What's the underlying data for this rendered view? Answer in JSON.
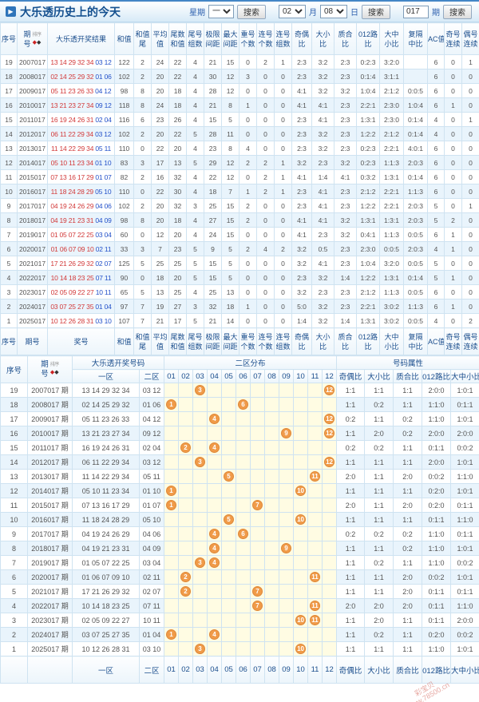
{
  "header": {
    "title": "大乐透历史上的今天",
    "week_label": "星期",
    "week_value": "一",
    "search_label": "搜索",
    "month_value": "02",
    "month_label": "月",
    "day_value": "08",
    "day_label": "日",
    "period_value": "017",
    "period_label": "期"
  },
  "sort_label": "排序",
  "table1": {
    "headers": [
      {
        "key": "seq",
        "l1": "序号",
        "l2": ""
      },
      {
        "key": "period",
        "l1": "期",
        "l2": "号",
        "sort": true
      },
      {
        "key": "result",
        "l1": "大乐透开奖结果",
        "l2": ""
      },
      {
        "key": "sum",
        "l1": "和值",
        "l2": ""
      },
      {
        "key": "sum-tail",
        "l1": "和值",
        "l2": "尾"
      },
      {
        "key": "average",
        "l1": "平均",
        "l2": "值"
      },
      {
        "key": "tail-sum",
        "l1": "尾数",
        "l2": "和值"
      },
      {
        "key": "tail-groups",
        "l1": "尾号",
        "l2": "组数"
      },
      {
        "key": "limit-span",
        "l1": "极限",
        "l2": "间距"
      },
      {
        "key": "max-gap",
        "l1": "最大",
        "l2": "间距"
      },
      {
        "key": "repeat-count",
        "l1": "重号",
        "l2": "个数"
      },
      {
        "key": "consec-count",
        "l1": "连号",
        "l2": "个数"
      },
      {
        "key": "consec-groups",
        "l1": "连号",
        "l2": "组数"
      },
      {
        "key": "odd-even-ratio",
        "l1": "奇偶",
        "l2": "比"
      },
      {
        "key": "big-small-ratio",
        "l1": "大小",
        "l2": "比"
      },
      {
        "key": "prime-composite-ratio",
        "l1": "质合",
        "l2": "比"
      },
      {
        "key": "road012-ratio",
        "l1": "012路",
        "l2": "比"
      },
      {
        "key": "big-mid-small-ratio",
        "l1": "大中",
        "l2": "小比"
      },
      {
        "key": "rep-skip-mid-ratio",
        "l1": "复隔",
        "l2": "中比"
      },
      {
        "key": "ac-value",
        "l1": "AC值",
        "l2": ""
      },
      {
        "key": "odd-run",
        "l1": "奇号",
        "l2": "连续"
      },
      {
        "key": "even-run",
        "l1": "偶号",
        "l2": "连续"
      }
    ],
    "footer": [
      {
        "l1": "序号",
        "l2": ""
      },
      {
        "l1": "期号",
        "l2": ""
      },
      {
        "l1": "奖号",
        "l2": ""
      },
      {
        "l1": "和值",
        "l2": ""
      },
      {
        "l1": "和值",
        "l2": "尾"
      },
      {
        "l1": "平均",
        "l2": "值"
      },
      {
        "l1": "尾数",
        "l2": "和值"
      },
      {
        "l1": "尾号",
        "l2": "组数"
      },
      {
        "l1": "极限",
        "l2": "间距"
      },
      {
        "l1": "最大",
        "l2": "间距"
      },
      {
        "l1": "重号",
        "l2": "个数"
      },
      {
        "l1": "连号",
        "l2": "个数"
      },
      {
        "l1": "连号",
        "l2": "组数"
      },
      {
        "l1": "奇偶",
        "l2": "比"
      },
      {
        "l1": "大小",
        "l2": "比"
      },
      {
        "l1": "质合",
        "l2": "比"
      },
      {
        "l1": "012路",
        "l2": "比"
      },
      {
        "l1": "大中",
        "l2": "小比"
      },
      {
        "l1": "复隔",
        "l2": "中比"
      },
      {
        "l1": "AC值",
        "l2": ""
      },
      {
        "l1": "奇号",
        "l2": "连续"
      },
      {
        "l1": "偶号",
        "l2": "连续"
      }
    ],
    "rows": [
      {
        "seq": 19,
        "period": "2007017",
        "front": "13 14 29 32 34",
        "back": "03 12",
        "vals": [
          122,
          2,
          24,
          22,
          4,
          21,
          15,
          0,
          2,
          1,
          "2:3",
          "3:2",
          "2:3",
          "0:2:3",
          "3:2:0",
          "",
          6,
          0,
          1
        ]
      },
      {
        "seq": 18,
        "period": "2008017",
        "front": "02 14 25 29 32",
        "back": "01 06",
        "vals": [
          102,
          2,
          20,
          22,
          4,
          30,
          12,
          3,
          0,
          0,
          "2:3",
          "3:2",
          "2:3",
          "0:1:4",
          "3:1:1",
          "",
          6,
          0,
          0
        ]
      },
      {
        "seq": 17,
        "period": "2009017",
        "front": "05 11 23 26 33",
        "back": "04 12",
        "vals": [
          98,
          8,
          20,
          18,
          4,
          28,
          12,
          0,
          0,
          0,
          "4:1",
          "3:2",
          "3:2",
          "1:0:4",
          "2:1:2",
          "0:0:5",
          6,
          0,
          0
        ]
      },
      {
        "seq": 16,
        "period": "2010017",
        "front": "13 21 23 27 34",
        "back": "09 12",
        "vals": [
          118,
          8,
          24,
          18,
          4,
          21,
          8,
          1,
          0,
          0,
          "4:1",
          "4:1",
          "2:3",
          "2:2:1",
          "2:3:0",
          "1:0:4",
          6,
          1,
          0
        ]
      },
      {
        "seq": 15,
        "period": "2011017",
        "front": "16 19 24 26 31",
        "back": "02 04",
        "vals": [
          116,
          6,
          23,
          26,
          4,
          15,
          5,
          0,
          0,
          0,
          "2:3",
          "4:1",
          "2:3",
          "1:3:1",
          "2:3:0",
          "0:1:4",
          4,
          0,
          1
        ]
      },
      {
        "seq": 14,
        "period": "2012017",
        "front": "06 11 22 29 34",
        "back": "03 12",
        "vals": [
          102,
          2,
          20,
          22,
          5,
          28,
          11,
          0,
          0,
          0,
          "2:3",
          "3:2",
          "2:3",
          "1:2:2",
          "2:1:2",
          "0:1:4",
          4,
          0,
          0
        ]
      },
      {
        "seq": 13,
        "period": "2013017",
        "front": "11 14 22 29 34",
        "back": "05 11",
        "vals": [
          110,
          0,
          22,
          20,
          4,
          23,
          8,
          4,
          0,
          0,
          "2:3",
          "3:2",
          "2:3",
          "0:2:3",
          "2:2:1",
          "4:0:1",
          6,
          0,
          0
        ]
      },
      {
        "seq": 12,
        "period": "2014017",
        "front": "05 10 11 23 34",
        "back": "01 10",
        "vals": [
          83,
          3,
          17,
          13,
          5,
          29,
          12,
          2,
          2,
          1,
          "3:2",
          "2:3",
          "3:2",
          "0:2:3",
          "1:1:3",
          "2:0:3",
          6,
          0,
          0
        ]
      },
      {
        "seq": 11,
        "period": "2015017",
        "front": "07 13 16 17 29",
        "back": "01 07",
        "vals": [
          82,
          2,
          16,
          32,
          4,
          22,
          12,
          0,
          2,
          1,
          "4:1",
          "1:4",
          "4:1",
          "0:3:2",
          "1:3:1",
          "0:1:4",
          6,
          0,
          0
        ]
      },
      {
        "seq": 10,
        "period": "2016017",
        "front": "11 18 24 28 29",
        "back": "05 10",
        "vals": [
          110,
          0,
          22,
          30,
          4,
          18,
          7,
          1,
          2,
          1,
          "2:3",
          "4:1",
          "2:3",
          "2:1:2",
          "2:2:1",
          "1:1:3",
          6,
          0,
          0
        ]
      },
      {
        "seq": 9,
        "period": "2017017",
        "front": "04 19 24 26 29",
        "back": "04 06",
        "vals": [
          102,
          2,
          20,
          32,
          3,
          25,
          15,
          2,
          0,
          0,
          "2:3",
          "4:1",
          "2:3",
          "1:2:2",
          "2:2:1",
          "2:0:3",
          5,
          0,
          1
        ]
      },
      {
        "seq": 8,
        "period": "2018017",
        "front": "04 19 21 23 31",
        "back": "04 09",
        "vals": [
          98,
          8,
          20,
          18,
          4,
          27,
          15,
          2,
          0,
          0,
          "4:1",
          "4:1",
          "3:2",
          "1:3:1",
          "1:3:1",
          "2:0:3",
          5,
          2,
          0
        ]
      },
      {
        "seq": 7,
        "period": "2019017",
        "front": "01 05 07 22 25",
        "back": "03 04",
        "vals": [
          60,
          0,
          12,
          20,
          4,
          24,
          15,
          0,
          0,
          0,
          "4:1",
          "2:3",
          "3:2",
          "0:4:1",
          "1:1:3",
          "0:0:5",
          6,
          1,
          0
        ]
      },
      {
        "seq": 6,
        "period": "2020017",
        "front": "01 06 07 09 10",
        "back": "02 11",
        "vals": [
          33,
          3,
          7,
          23,
          5,
          9,
          5,
          2,
          4,
          2,
          "3:2",
          "0:5",
          "2:3",
          "2:3:0",
          "0:0:5",
          "2:0:3",
          4,
          1,
          0
        ]
      },
      {
        "seq": 5,
        "period": "2021017",
        "front": "17 21 26 29 32",
        "back": "02 07",
        "vals": [
          125,
          5,
          25,
          25,
          5,
          15,
          5,
          0,
          0,
          0,
          "3:2",
          "4:1",
          "2:3",
          "1:0:4",
          "3:2:0",
          "0:0:5",
          5,
          0,
          0
        ]
      },
      {
        "seq": 4,
        "period": "2022017",
        "front": "10 14 18 23 25",
        "back": "07 11",
        "vals": [
          90,
          0,
          18,
          20,
          5,
          15,
          5,
          0,
          0,
          0,
          "2:3",
          "3:2",
          "1:4",
          "1:2:2",
          "1:3:1",
          "0:1:4",
          5,
          1,
          0
        ]
      },
      {
        "seq": 3,
        "period": "2023017",
        "front": "02 05 09 22 27",
        "back": "10 11",
        "vals": [
          65,
          5,
          13,
          25,
          4,
          25,
          13,
          0,
          0,
          0,
          "3:2",
          "2:3",
          "2:3",
          "2:1:2",
          "1:1:3",
          "0:0:5",
          6,
          0,
          0
        ]
      },
      {
        "seq": 2,
        "period": "2024017",
        "front": "03 07 25 27 35",
        "back": "01 04",
        "vals": [
          97,
          7,
          19,
          27,
          3,
          32,
          18,
          1,
          0,
          0,
          "5:0",
          "3:2",
          "2:3",
          "2:2:1",
          "3:0:2",
          "1:1:3",
          6,
          1,
          0
        ]
      },
      {
        "seq": 1,
        "period": "2025017",
        "front": "10 12 26 28 31",
        "back": "03 10",
        "vals": [
          107,
          7,
          21,
          17,
          5,
          21,
          14,
          0,
          0,
          0,
          "1:4",
          "3:2",
          "1:4",
          "1:3:1",
          "3:0:2",
          "0:0:5",
          4,
          0,
          2
        ]
      }
    ]
  },
  "table2": {
    "seq_header": "序号",
    "period_header_l1": "期",
    "period_header_l2": "号",
    "groups": [
      {
        "key": "draw-numbers",
        "label": "大乐透开奖号码",
        "children": [
          "一区",
          "二区"
        ]
      },
      {
        "key": "zone2-distribution",
        "label": "二区分布",
        "children": [
          "01",
          "02",
          "03",
          "04",
          "05",
          "06",
          "07",
          "08",
          "09",
          "10",
          "11",
          "12"
        ]
      },
      {
        "key": "number-attributes",
        "label": "号码属性",
        "children": [
          "奇偶比",
          "大小比",
          "质合比",
          "012路比",
          "大中小比"
        ]
      }
    ],
    "rows": [
      {
        "seq": 19,
        "period": "2007017 期",
        "front": "13 14 29 32 34",
        "back": "03 12",
        "balls": [
          3,
          12
        ],
        "attrs": [
          "1:1",
          "1:1",
          "1:1",
          "2:0:0",
          "1:0:1"
        ]
      },
      {
        "seq": 18,
        "period": "2008017 期",
        "front": "02 14 25 29 32",
        "back": "01 06",
        "balls": [
          1,
          6
        ],
        "attrs": [
          "1:1",
          "0:2",
          "1:1",
          "1:1:0",
          "0:1:1"
        ]
      },
      {
        "seq": 17,
        "period": "2009017 期",
        "front": "05 11 23 26 33",
        "back": "04 12",
        "balls": [
          4,
          12
        ],
        "attrs": [
          "0:2",
          "1:1",
          "0:2",
          "1:1:0",
          "1:0:1"
        ]
      },
      {
        "seq": 16,
        "period": "2010017 期",
        "front": "13 21 23 27 34",
        "back": "09 12",
        "balls": [
          9,
          12
        ],
        "attrs": [
          "1:1",
          "2:0",
          "0:2",
          "2:0:0",
          "2:0:0"
        ]
      },
      {
        "seq": 15,
        "period": "2011017 期",
        "front": "16 19 24 26 31",
        "back": "02 04",
        "balls": [
          2,
          4
        ],
        "attrs": [
          "0:2",
          "0:2",
          "1:1",
          "0:1:1",
          "0:0:2"
        ]
      },
      {
        "seq": 14,
        "period": "2012017 期",
        "front": "06 11 22 29 34",
        "back": "03 12",
        "balls": [
          3,
          12
        ],
        "attrs": [
          "1:1",
          "1:1",
          "1:1",
          "2:0:0",
          "1:0:1"
        ]
      },
      {
        "seq": 13,
        "period": "2013017 期",
        "front": "11 14 22 29 34",
        "back": "05 11",
        "balls": [
          5,
          11
        ],
        "attrs": [
          "2:0",
          "1:1",
          "2:0",
          "0:0:2",
          "1:1:0"
        ]
      },
      {
        "seq": 12,
        "period": "2014017 期",
        "front": "05 10 11 23 34",
        "back": "01 10",
        "balls": [
          1,
          10
        ],
        "attrs": [
          "1:1",
          "1:1",
          "1:1",
          "0:2:0",
          "1:0:1"
        ]
      },
      {
        "seq": 11,
        "period": "2015017 期",
        "front": "07 13 16 17 29",
        "back": "01 07",
        "balls": [
          1,
          7
        ],
        "attrs": [
          "2:0",
          "1:1",
          "2:0",
          "0:2:0",
          "0:1:1"
        ]
      },
      {
        "seq": 10,
        "period": "2016017 期",
        "front": "11 18 24 28 29",
        "back": "05 10",
        "balls": [
          5,
          10
        ],
        "attrs": [
          "1:1",
          "1:1",
          "1:1",
          "0:1:1",
          "1:1:0"
        ]
      },
      {
        "seq": 9,
        "period": "2017017 期",
        "front": "04 19 24 26 29",
        "back": "04 06",
        "balls": [
          4,
          6
        ],
        "attrs": [
          "0:2",
          "0:2",
          "0:2",
          "1:1:0",
          "0:1:1"
        ]
      },
      {
        "seq": 8,
        "period": "2018017 期",
        "front": "04 19 21 23 31",
        "back": "04 09",
        "balls": [
          4,
          9
        ],
        "attrs": [
          "1:1",
          "1:1",
          "0:2",
          "1:1:0",
          "1:0:1"
        ]
      },
      {
        "seq": 7,
        "period": "2019017 期",
        "front": "01 05 07 22 25",
        "back": "03 04",
        "balls": [
          3,
          4
        ],
        "attrs": [
          "1:1",
          "0:2",
          "1:1",
          "1:1:0",
          "0:0:2"
        ]
      },
      {
        "seq": 6,
        "period": "2020017 期",
        "front": "01 06 07 09 10",
        "back": "02 11",
        "balls": [
          2,
          11
        ],
        "attrs": [
          "1:1",
          "1:1",
          "2:0",
          "0:0:2",
          "1:0:1"
        ]
      },
      {
        "seq": 5,
        "period": "2021017 期",
        "front": "17 21 26 29 32",
        "back": "02 07",
        "balls": [
          2,
          7
        ],
        "attrs": [
          "1:1",
          "1:1",
          "2:0",
          "0:1:1",
          "0:1:1"
        ]
      },
      {
        "seq": 4,
        "period": "2022017 期",
        "front": "10 14 18 23 25",
        "back": "07 11",
        "balls": [
          7,
          11
        ],
        "attrs": [
          "2:0",
          "2:0",
          "2:0",
          "0:1:1",
          "1:1:0"
        ]
      },
      {
        "seq": 3,
        "period": "2023017 期",
        "front": "02 05 09 22 27",
        "back": "10 11",
        "balls": [
          10,
          11
        ],
        "attrs": [
          "1:1",
          "2:0",
          "1:1",
          "0:1:1",
          "2:0:0"
        ]
      },
      {
        "seq": 2,
        "period": "2024017 期",
        "front": "03 07 25 27 35",
        "back": "01 04",
        "balls": [
          1,
          4
        ],
        "attrs": [
          "1:1",
          "0:2",
          "1:1",
          "0:2:0",
          "0:0:2"
        ]
      },
      {
        "seq": 1,
        "period": "2025017 期",
        "front": "10 12 26 28 31",
        "back": "03 10",
        "balls": [
          3,
          10
        ],
        "attrs": [
          "1:1",
          "1:1",
          "1:1",
          "1:1:0",
          "1:0:1"
        ]
      }
    ]
  },
  "watermark": {
    "line1": "彩宝贝",
    "line2": "www.78500.cn"
  }
}
